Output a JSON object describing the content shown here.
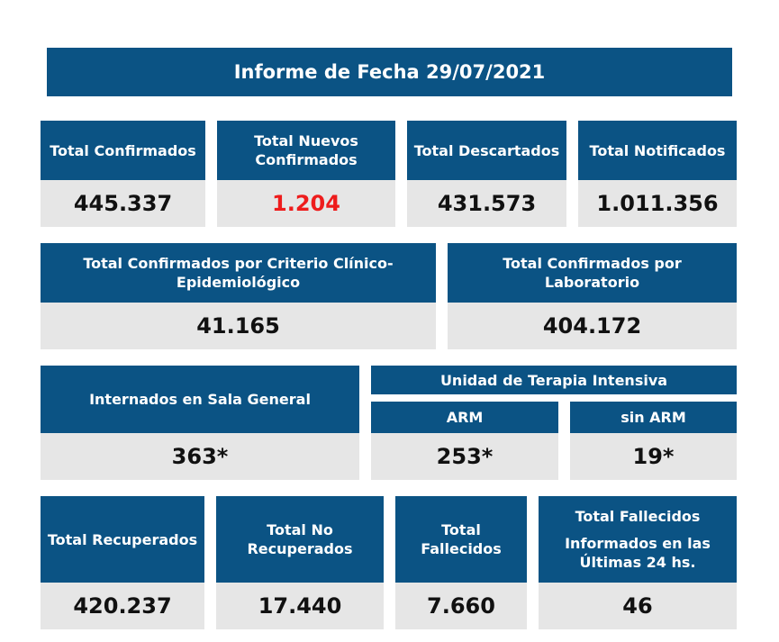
{
  "report": {
    "title": "Informe de Fecha 29/07/2021"
  },
  "row1": [
    {
      "label": "Total Confirmados",
      "value": "445.337"
    },
    {
      "label": "Total Nuevos Confirmados",
      "value": "1.204"
    },
    {
      "label": "Total Descartados",
      "value": "431.573"
    },
    {
      "label": "Total Notificados",
      "value": "1.011.356"
    }
  ],
  "row2": [
    {
      "label": "Total Confirmados por Criterio Clínico-Epidemiológico",
      "value": "41.165"
    },
    {
      "label": "Total Confirmados por Laboratorio",
      "value": "404.172"
    }
  ],
  "row3": {
    "sala_general": {
      "label": "Internados en Sala General",
      "value": "363*"
    },
    "uti": {
      "label": "Unidad de Terapia Intensiva",
      "arm": {
        "label": "ARM",
        "value": "253*"
      },
      "sin_arm": {
        "label": "sin ARM",
        "value": "19*"
      }
    }
  },
  "row4": [
    {
      "label": "Total Recuperados",
      "value": "420.237"
    },
    {
      "label": "Total No Recuperados",
      "value": "17.440"
    },
    {
      "label": "Total Fallecidos",
      "value": "7.660"
    },
    {
      "label": "Total Fallecidos",
      "sublabel": "Informados en las Últimas 24 hs.",
      "value": "46"
    }
  ],
  "colors": {
    "header_blue": "#0b5384",
    "value_grey": "#e6e6e6",
    "highlight_red": "#ee1c1c"
  }
}
